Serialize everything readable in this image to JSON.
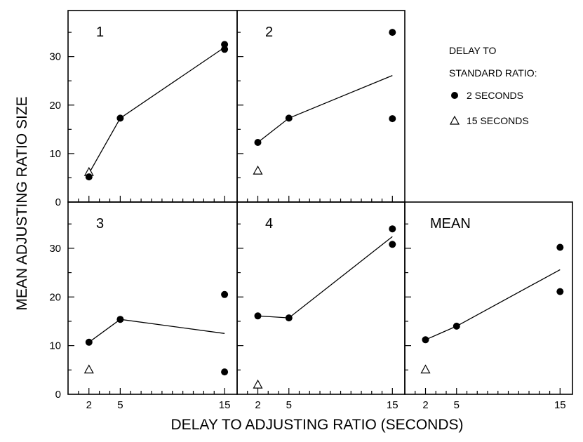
{
  "chart_data": {
    "type": "scatter",
    "xlabel": "DELAY TO ADJUSTING RATIO  (SECONDS)",
    "ylabel": "MEAN ADJUSTING RATIO SIZE",
    "x_ticks": [
      2,
      5,
      15
    ],
    "y_ticks": [
      0,
      10,
      20,
      30
    ],
    "xlim": [
      0,
      16.2
    ],
    "ylim": [
      0,
      39.5
    ],
    "legend": {
      "title_lines": [
        "DELAY TO",
        "STANDARD RATIO:"
      ],
      "entries": [
        {
          "label": "2 SECONDS",
          "marker": "circle"
        },
        {
          "label": "15 SECONDS",
          "marker": "triangle"
        }
      ],
      "placement": "top-right"
    },
    "panels": [
      {
        "label": "1",
        "circles": [
          [
            2,
            5.2
          ],
          [
            5,
            17.3
          ],
          [
            15,
            31.5
          ],
          [
            15,
            32.5
          ]
        ],
        "triangles": [
          [
            2,
            6.2
          ]
        ],
        "line": [
          [
            2,
            5.9
          ],
          [
            5,
            17.3
          ],
          [
            15,
            31.9
          ]
        ]
      },
      {
        "label": "2",
        "circles": [
          [
            2,
            12.3
          ],
          [
            5,
            17.3
          ],
          [
            15,
            35.0
          ],
          [
            15,
            17.2
          ]
        ],
        "triangles": [
          [
            2,
            6.5
          ]
        ],
        "line": [
          [
            2,
            12.3
          ],
          [
            5,
            17.3
          ],
          [
            15,
            26.1
          ]
        ]
      },
      {
        "label": "3",
        "circles": [
          [
            2,
            10.7
          ],
          [
            5,
            15.4
          ],
          [
            15,
            20.5
          ],
          [
            15,
            4.6
          ]
        ],
        "triangles": [
          [
            2,
            5.1
          ]
        ],
        "line": [
          [
            2,
            10.7
          ],
          [
            5,
            15.4
          ],
          [
            15,
            12.5
          ]
        ]
      },
      {
        "label": "4",
        "circles": [
          [
            2,
            16.1
          ],
          [
            5,
            15.7
          ],
          [
            15,
            34.0
          ],
          [
            15,
            30.8
          ]
        ],
        "triangles": [
          [
            2,
            2.0
          ]
        ],
        "line": [
          [
            2,
            16.1
          ],
          [
            5,
            15.7
          ],
          [
            15,
            32.4
          ]
        ]
      },
      {
        "label": "MEAN",
        "circles": [
          [
            2,
            11.2
          ],
          [
            5,
            14.0
          ],
          [
            15,
            30.2
          ],
          [
            15,
            21.1
          ]
        ],
        "triangles": [
          [
            2,
            5.1
          ]
        ],
        "line": [
          [
            2,
            11.2
          ],
          [
            5,
            14.0
          ],
          [
            15,
            25.6
          ]
        ]
      }
    ]
  }
}
